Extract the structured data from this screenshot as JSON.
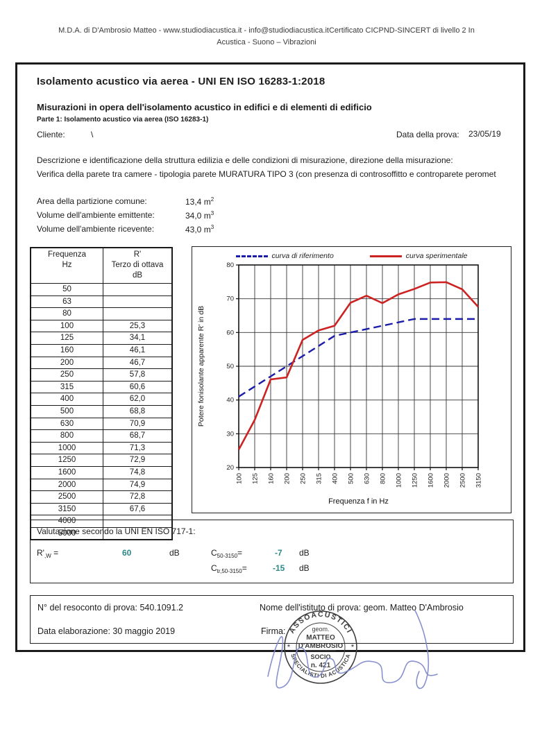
{
  "page_header": {
    "line1": "M.D.A. di D'Ambrosio Matteo - www.studiodiacustica.it - info@studiodiacustica.itCertificato CICPND-SINCERT di livello 2 In",
    "line2": "Acustica - Suono – Vibrazioni"
  },
  "report": {
    "title": "Isolamento acustico via aerea - UNI EN ISO 16283-1:2018",
    "subtitle": "Misurazioni in opera dell'isolamento acustico in edifici e di elementi di edificio",
    "part_line": "Parte 1: Isolamento acustico via aerea (ISO 16283-1)",
    "client_label": "Cliente:",
    "client_value": "\\",
    "test_date_label": "Data della prova:",
    "test_date_value": "23/05/19",
    "description_label": "Descrizione e identificazione della struttura edilizia e delle condizioni di misurazione, direzione della misurazione:",
    "description_value": "Verifica della parete tra camere - tipologia parete MURATURA TIPO 3 (con presenza di controsoffitto e controparete peromet"
  },
  "measurements": [
    {
      "label": "Area della partizione comune:",
      "value": "13,4",
      "unit_base": "m",
      "unit_exp": "2"
    },
    {
      "label": "Volume dell'ambiente emittente:",
      "value": "34,0",
      "unit_base": "m",
      "unit_exp": "3"
    },
    {
      "label": "Volume dell'ambiente ricevente:",
      "value": "43,0",
      "unit_base": "m",
      "unit_exp": "3"
    }
  ],
  "table": {
    "col1_line1": "Frequenza",
    "col1_line2": "Hz",
    "col2_line1": "R'",
    "col2_line2": "Terzo di ottava",
    "col2_line3": "dB",
    "rows": [
      {
        "freq": "50",
        "value": ""
      },
      {
        "freq": "63",
        "value": ""
      },
      {
        "freq": "80",
        "value": ""
      },
      {
        "freq": "100",
        "value": "25,3"
      },
      {
        "freq": "125",
        "value": "34,1"
      },
      {
        "freq": "160",
        "value": "46,1"
      },
      {
        "freq": "200",
        "value": "46,7"
      },
      {
        "freq": "250",
        "value": "57,8"
      },
      {
        "freq": "315",
        "value": "60,6"
      },
      {
        "freq": "400",
        "value": "62,0"
      },
      {
        "freq": "500",
        "value": "68,8"
      },
      {
        "freq": "630",
        "value": "70,9"
      },
      {
        "freq": "800",
        "value": "68,7"
      },
      {
        "freq": "1000",
        "value": "71,3"
      },
      {
        "freq": "1250",
        "value": "72,9"
      },
      {
        "freq": "1600",
        "value": "74,8"
      },
      {
        "freq": "2000",
        "value": "74,9"
      },
      {
        "freq": "2500",
        "value": "72,8"
      },
      {
        "freq": "3150",
        "value": "67,6"
      },
      {
        "freq": "4000",
        "value": ""
      },
      {
        "freq": "5000",
        "value": ""
      }
    ]
  },
  "chart_data": {
    "type": "line",
    "title": "",
    "xlabel": "Frequenza f in Hz",
    "ylabel": "Potere fonisolante apparente R' in dB",
    "ylim": [
      20,
      80
    ],
    "ytick_step": 10,
    "grid": true,
    "legend_position": "top",
    "categories": [
      "100",
      "125",
      "160",
      "200",
      "250",
      "315",
      "400",
      "500",
      "630",
      "800",
      "1000",
      "1250",
      "1600",
      "2000",
      "2500",
      "3150"
    ],
    "series": [
      {
        "name": "curva di riferimento",
        "color": "#1c1caa",
        "dashed": true,
        "values": [
          41,
          44,
          47,
          50,
          53,
          56,
          59,
          60,
          61,
          62,
          63,
          64,
          64,
          64,
          64,
          64
        ]
      },
      {
        "name": "curva sperimentale",
        "color": "#cc2222",
        "dashed": false,
        "values": [
          25.3,
          34.1,
          46.1,
          46.7,
          57.8,
          60.6,
          62.0,
          68.8,
          70.9,
          68.7,
          71.3,
          72.9,
          74.8,
          74.9,
          72.8,
          67.6
        ]
      }
    ]
  },
  "evaluation": {
    "title": "Valutazione secondo la UNI EN ISO 717-1:",
    "rw_base": "R'",
    "rw_sub": ",W",
    "rw_eq": "=",
    "rw_value": "60",
    "rw_unit": "dB",
    "c1_base": "C",
    "c1_sub": "50-3150",
    "c1_eq": "=",
    "c1_value": "-7",
    "c1_unit": "dB",
    "c2_base": "C",
    "c2_sub": "tr,50-3150",
    "c2_eq": "=",
    "c2_value": "-15",
    "c2_unit": "dB",
    "value_color": "#2e8989"
  },
  "footer": {
    "report_no_label": "N° del resoconto di prova:",
    "report_no_value": "540.1091.2",
    "elaboration_label": "Data elaborazione:",
    "elaboration_value": "30 maggio 2019",
    "institute_label": "Nome dell'istituto di prova:",
    "institute_value": "geom. Matteo D'Ambrosio",
    "signature_label": "Firma:"
  },
  "stamp": {
    "top_arc": "ASSOACUSTICI",
    "bottom_arc": "SPECIALISTI DI ACUSTICA",
    "center_line1": "geom.",
    "center_line2": "MATTEO",
    "center_line3": "D'AMBROSIO",
    "center_line4": "SOCIO",
    "center_line5": "n. 421",
    "star_left": "*",
    "star_right": "*"
  },
  "colors": {
    "reference_curve": "#1c1caa",
    "experimental_curve": "#cc2222",
    "evaluation_value": "#2e8989",
    "stamp_ink": "#3d3d3d",
    "signature_ink": "#7b86c9"
  }
}
